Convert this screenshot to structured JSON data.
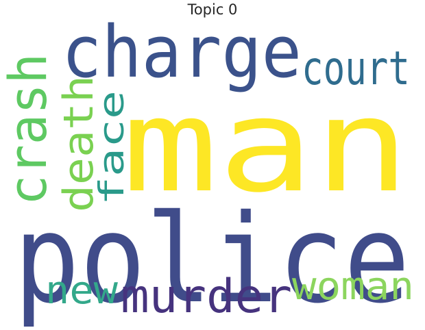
{
  "title": "Topic 0",
  "words": [
    {
      "text": "man",
      "color": "#fde725"
    },
    {
      "text": "police",
      "color": "#404c8a"
    },
    {
      "text": "charge",
      "color": "#3b528b"
    },
    {
      "text": "court",
      "color": "#2f6c8e"
    },
    {
      "text": "crash",
      "color": "#5ec962"
    },
    {
      "text": "death",
      "color": "#7ad151"
    },
    {
      "text": "face",
      "color": "#2a9a8a"
    },
    {
      "text": "murder",
      "color": "#46337e"
    },
    {
      "text": "new",
      "color": "#33a88a"
    },
    {
      "text": "woman",
      "color": "#8cd55e"
    }
  ]
}
